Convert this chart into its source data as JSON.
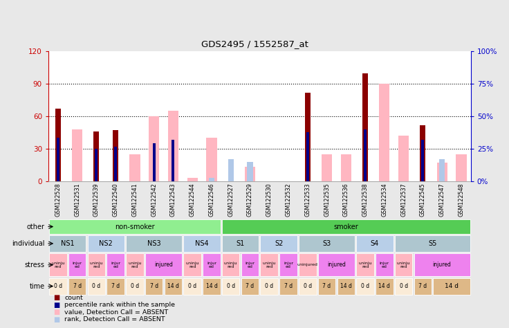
{
  "title": "GDS2495 / 1552587_at",
  "samples": [
    "GSM122528",
    "GSM122531",
    "GSM122539",
    "GSM122540",
    "GSM122541",
    "GSM122542",
    "GSM122543",
    "GSM122544",
    "GSM122546",
    "GSM122527",
    "GSM122529",
    "GSM122530",
    "GSM122532",
    "GSM122533",
    "GSM122535",
    "GSM122536",
    "GSM122538",
    "GSM122534",
    "GSM122537",
    "GSM122545",
    "GSM122547",
    "GSM122548"
  ],
  "count_values": [
    67,
    0,
    46,
    47,
    0,
    0,
    0,
    0,
    0,
    0,
    0,
    0,
    0,
    82,
    0,
    0,
    100,
    0,
    0,
    52,
    0,
    0
  ],
  "percentile_values": [
    40,
    0,
    30,
    32,
    0,
    35,
    38,
    0,
    0,
    0,
    0,
    0,
    0,
    45,
    0,
    0,
    48,
    0,
    0,
    38,
    0,
    0
  ],
  "absent_value_values": [
    0,
    48,
    0,
    0,
    25,
    60,
    65,
    3,
    40,
    0,
    13,
    0,
    0,
    0,
    25,
    25,
    0,
    90,
    42,
    0,
    17,
    25
  ],
  "absent_rank_values": [
    0,
    0,
    0,
    0,
    0,
    0,
    0,
    0,
    3,
    20,
    18,
    0,
    0,
    0,
    0,
    0,
    0,
    0,
    0,
    0,
    20,
    0
  ],
  "ylim_left": [
    0,
    120
  ],
  "ylim_right": [
    0,
    100
  ],
  "yticks_left": [
    0,
    30,
    60,
    90,
    120
  ],
  "yticks_right": [
    0,
    25,
    50,
    75,
    100
  ],
  "ytick_labels_left": [
    "0",
    "30",
    "60",
    "90",
    "120"
  ],
  "ytick_labels_right": [
    "0%",
    "25%",
    "50%",
    "75%",
    "100%"
  ],
  "other_groups": [
    {
      "label": "non-smoker",
      "start": 0,
      "end": 9,
      "color": "#90ee90"
    },
    {
      "label": "smoker",
      "start": 9,
      "end": 22,
      "color": "#55cc55"
    }
  ],
  "individual_groups": [
    {
      "label": "NS1",
      "start": 0,
      "end": 2,
      "color": "#aec6cf"
    },
    {
      "label": "NS2",
      "start": 2,
      "end": 4,
      "color": "#b8cfe8"
    },
    {
      "label": "NS3",
      "start": 4,
      "end": 7,
      "color": "#aec6cf"
    },
    {
      "label": "NS4",
      "start": 7,
      "end": 9,
      "color": "#b8cfe8"
    },
    {
      "label": "S1",
      "start": 9,
      "end": 11,
      "color": "#aec6cf"
    },
    {
      "label": "S2",
      "start": 11,
      "end": 13,
      "color": "#b8cfe8"
    },
    {
      "label": "S3",
      "start": 13,
      "end": 16,
      "color": "#aec6cf"
    },
    {
      "label": "S4",
      "start": 16,
      "end": 18,
      "color": "#b8cfe8"
    },
    {
      "label": "S5",
      "start": 18,
      "end": 22,
      "color": "#aec6cf"
    }
  ],
  "stress_groups": [
    {
      "label": "uninju\nred",
      "start": 0,
      "end": 1,
      "color": "#ffb6c1"
    },
    {
      "label": "injur\ned",
      "start": 1,
      "end": 2,
      "color": "#ee82ee"
    },
    {
      "label": "uninju\nred",
      "start": 2,
      "end": 3,
      "color": "#ffb6c1"
    },
    {
      "label": "injur\ned",
      "start": 3,
      "end": 4,
      "color": "#ee82ee"
    },
    {
      "label": "uninju\nred",
      "start": 4,
      "end": 5,
      "color": "#ffb6c1"
    },
    {
      "label": "injured",
      "start": 5,
      "end": 7,
      "color": "#ee82ee"
    },
    {
      "label": "uninju\nred",
      "start": 7,
      "end": 8,
      "color": "#ffb6c1"
    },
    {
      "label": "injur\ned",
      "start": 8,
      "end": 9,
      "color": "#ee82ee"
    },
    {
      "label": "uninju\nred",
      "start": 9,
      "end": 10,
      "color": "#ffb6c1"
    },
    {
      "label": "injur\ned",
      "start": 10,
      "end": 11,
      "color": "#ee82ee"
    },
    {
      "label": "uninju\nred",
      "start": 11,
      "end": 12,
      "color": "#ffb6c1"
    },
    {
      "label": "injur\ned",
      "start": 12,
      "end": 13,
      "color": "#ee82ee"
    },
    {
      "label": "uninjured",
      "start": 13,
      "end": 14,
      "color": "#ffb6c1"
    },
    {
      "label": "injured",
      "start": 14,
      "end": 16,
      "color": "#ee82ee"
    },
    {
      "label": "uninju\nred",
      "start": 16,
      "end": 17,
      "color": "#ffb6c1"
    },
    {
      "label": "injur\ned",
      "start": 17,
      "end": 18,
      "color": "#ee82ee"
    },
    {
      "label": "uninju\nred",
      "start": 18,
      "end": 19,
      "color": "#ffb6c1"
    },
    {
      "label": "injured",
      "start": 19,
      "end": 22,
      "color": "#ee82ee"
    }
  ],
  "time_groups": [
    {
      "label": "0 d",
      "start": 0,
      "end": 1,
      "color": "#faebd7"
    },
    {
      "label": "7 d",
      "start": 1,
      "end": 2,
      "color": "#deb887"
    },
    {
      "label": "0 d",
      "start": 2,
      "end": 3,
      "color": "#faebd7"
    },
    {
      "label": "7 d",
      "start": 3,
      "end": 4,
      "color": "#deb887"
    },
    {
      "label": "0 d",
      "start": 4,
      "end": 5,
      "color": "#faebd7"
    },
    {
      "label": "7 d",
      "start": 5,
      "end": 6,
      "color": "#deb887"
    },
    {
      "label": "14 d",
      "start": 6,
      "end": 7,
      "color": "#deb887"
    },
    {
      "label": "0 d",
      "start": 7,
      "end": 8,
      "color": "#faebd7"
    },
    {
      "label": "14 d",
      "start": 8,
      "end": 9,
      "color": "#deb887"
    },
    {
      "label": "0 d",
      "start": 9,
      "end": 10,
      "color": "#faebd7"
    },
    {
      "label": "7 d",
      "start": 10,
      "end": 11,
      "color": "#deb887"
    },
    {
      "label": "0 d",
      "start": 11,
      "end": 12,
      "color": "#faebd7"
    },
    {
      "label": "7 d",
      "start": 12,
      "end": 13,
      "color": "#deb887"
    },
    {
      "label": "0 d",
      "start": 13,
      "end": 14,
      "color": "#faebd7"
    },
    {
      "label": "7 d",
      "start": 14,
      "end": 15,
      "color": "#deb887"
    },
    {
      "label": "14 d",
      "start": 15,
      "end": 16,
      "color": "#deb887"
    },
    {
      "label": "0 d",
      "start": 16,
      "end": 17,
      "color": "#faebd7"
    },
    {
      "label": "14 d",
      "start": 17,
      "end": 18,
      "color": "#deb887"
    },
    {
      "label": "0 d",
      "start": 18,
      "end": 19,
      "color": "#faebd7"
    },
    {
      "label": "7 d",
      "start": 19,
      "end": 20,
      "color": "#deb887"
    },
    {
      "label": "14 d",
      "start": 20,
      "end": 22,
      "color": "#deb887"
    }
  ],
  "count_color": "#8b0000",
  "percentile_color": "#00008b",
  "absent_value_color": "#ffb6c1",
  "absent_rank_color": "#b0c8e8",
  "bg_color": "#e8e8e8",
  "plot_bg": "#ffffff",
  "left_label_color": "#cc0000",
  "right_label_color": "#0000cc"
}
